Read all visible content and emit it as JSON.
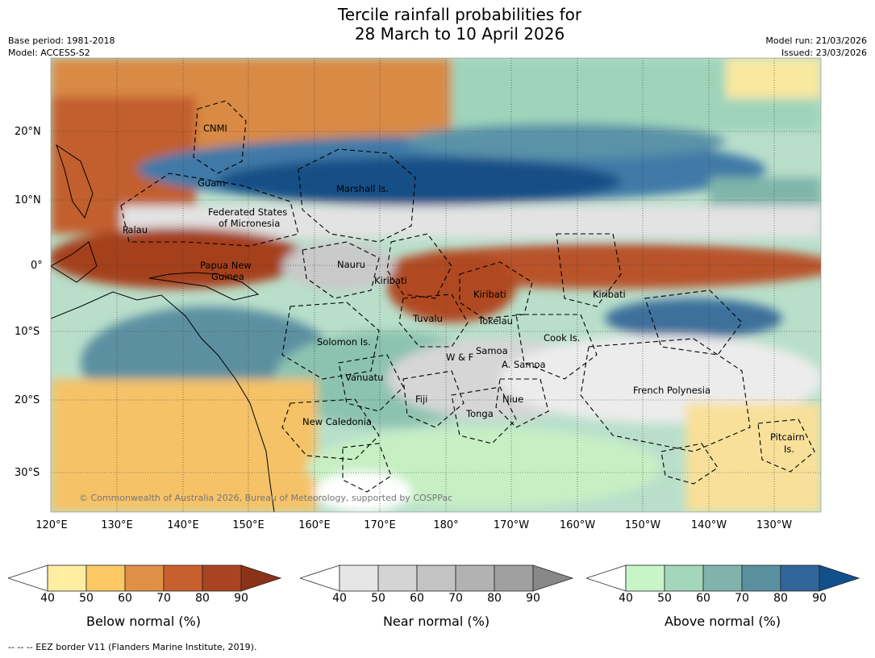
{
  "title": {
    "line1": "Tercile rainfall probabilities for",
    "line2": "28 March to 10 April 2026"
  },
  "meta": {
    "base_period": "Base period: 1981-2018",
    "model": "Model: ACCESS-S2",
    "model_run": "Model run: 21/03/2026",
    "issued": "Issued: 23/03/2026"
  },
  "axes": {
    "lat_labels": [
      "20°N",
      "10°N",
      "0°",
      "10°S",
      "20°S",
      "30°S"
    ],
    "lon_labels": [
      "120°E",
      "130°E",
      "140°E",
      "150°E",
      "160°E",
      "170°E",
      "180°",
      "170°W",
      "160°W",
      "150°W",
      "140°W",
      "130°W"
    ]
  },
  "regions": [
    "CNMI",
    "Guam",
    "Marshall Is.",
    "Federated States",
    "of Micronesia",
    "Palau",
    "Papua New",
    "Guinea",
    "Nauru",
    "Kiribati",
    "Kiribati",
    "Kiribati",
    "Tuvalu",
    "Tokelau",
    "Solomon Is.",
    "W & F",
    "Samoa",
    "Cook Is.",
    "A. Samoa",
    "Vanuatu",
    "Fiji",
    "Niue",
    "French Polynesia",
    "Tonga",
    "New Caledonia",
    "Pitcairn",
    "Is."
  ],
  "copyright": "© Commonwealth of Australia 2026, Bureau of Meteorology, supported by COSPPac",
  "colorbars": [
    {
      "title": "Below normal (%)",
      "ticks": [
        "40",
        "50",
        "60",
        "70",
        "80",
        "90"
      ],
      "colors": [
        "#ffffff",
        "#fdeea2",
        "#fbc864",
        "#e08f46",
        "#c8602e",
        "#a94422",
        "#8c3219"
      ]
    },
    {
      "title": "Near normal (%)",
      "ticks": [
        "40",
        "50",
        "60",
        "70",
        "80",
        "90"
      ],
      "colors": [
        "#ffffff",
        "#e6e6e6",
        "#d4d4d4",
        "#c3c3c3",
        "#b2b2b2",
        "#a0a0a0",
        "#888888"
      ]
    },
    {
      "title": "Above normal (%)",
      "ticks": [
        "40",
        "50",
        "60",
        "70",
        "80",
        "90"
      ],
      "colors": [
        "#ffffff",
        "#c8f5c8",
        "#a3d6bb",
        "#7fb3ac",
        "#5a8fa0",
        "#30669a",
        "#12508c"
      ]
    }
  ],
  "footnote": "--  --  -- EEZ border V11 (Flanders Marine Institute, 2019)."
}
